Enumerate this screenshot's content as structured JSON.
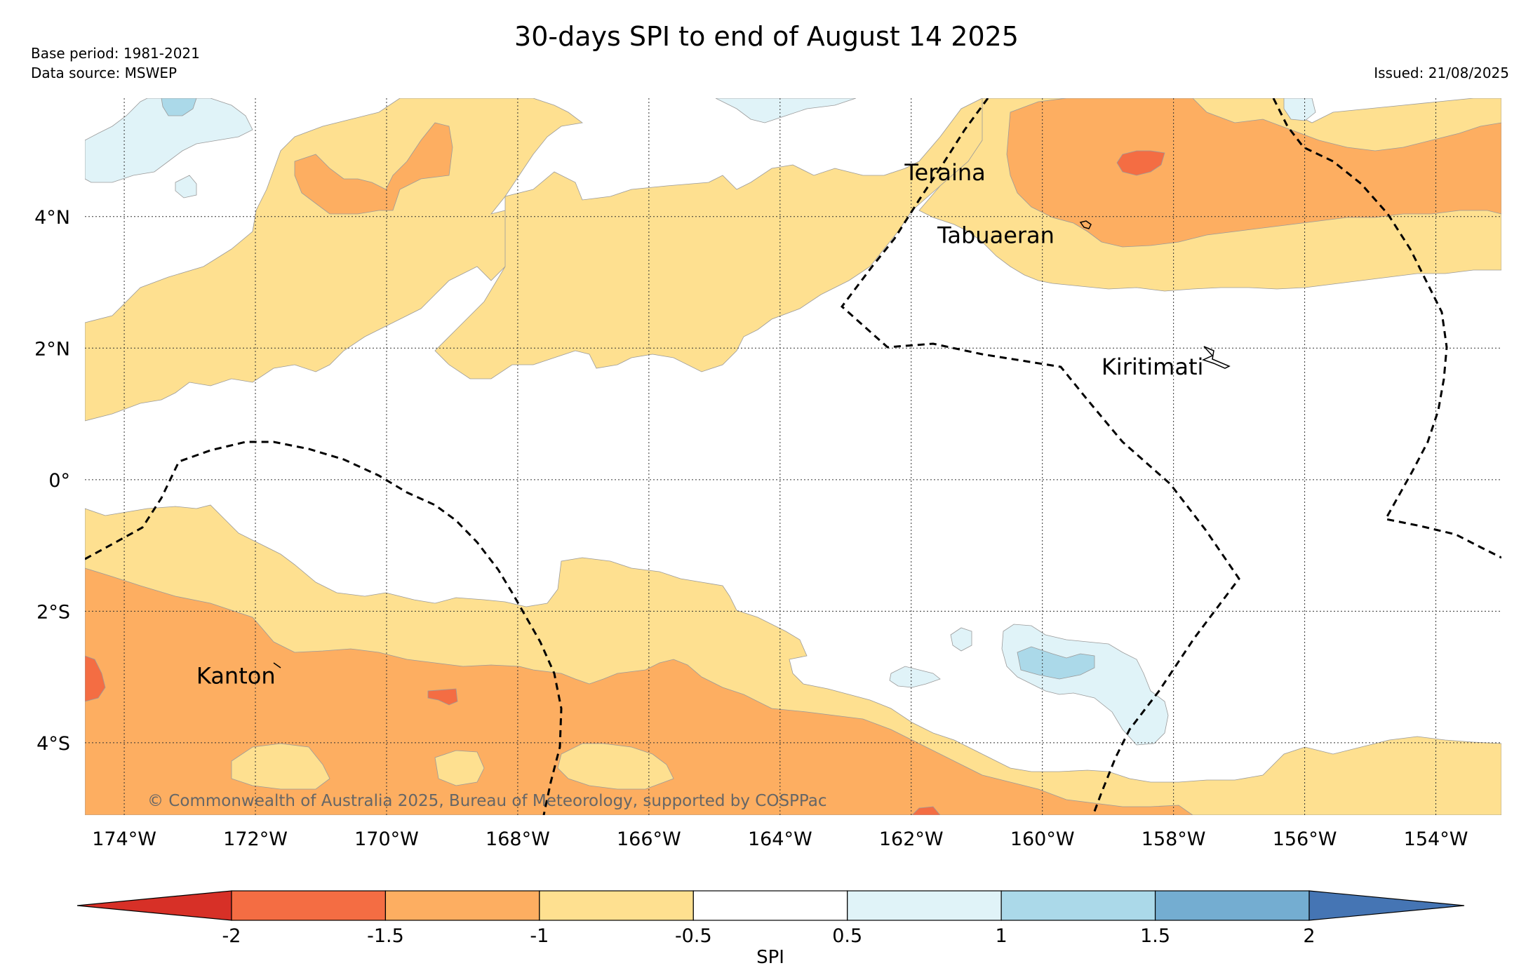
{
  "title": "30-days SPI to end of August 14 2025",
  "meta": {
    "base_period": "Base period: 1981-2021",
    "data_source": "Data source: MSWEP",
    "issued": "Issued: 21/08/2025"
  },
  "copyright": "© Commonwealth of Australia 2025, Bureau of Meteorology, supported by COSPPac",
  "map": {
    "lon_range": [
      -174.6,
      -153.0
    ],
    "lat_range": [
      -5.1,
      5.8
    ],
    "lon_ticks": [
      {
        "value": -174,
        "label": "174°W"
      },
      {
        "value": -172,
        "label": "172°W"
      },
      {
        "value": -170,
        "label": "170°W"
      },
      {
        "value": -168,
        "label": "168°W"
      },
      {
        "value": -166,
        "label": "166°W"
      },
      {
        "value": -164,
        "label": "164°W"
      },
      {
        "value": -162,
        "label": "162°W"
      },
      {
        "value": -160,
        "label": "160°W"
      },
      {
        "value": -158,
        "label": "158°W"
      },
      {
        "value": -156,
        "label": "156°W"
      },
      {
        "value": -154,
        "label": "154°W"
      }
    ],
    "lat_ticks": [
      {
        "value": 4,
        "label": "4°N"
      },
      {
        "value": 2,
        "label": "2°N"
      },
      {
        "value": 0,
        "label": "0°"
      },
      {
        "value": -2,
        "label": "2°S"
      },
      {
        "value": -4,
        "label": "4°S"
      }
    ],
    "grid": true,
    "places": [
      {
        "name": "Teraina",
        "lon": -162.1,
        "lat": 4.55
      },
      {
        "name": "Tabuaeran",
        "lon": -161.6,
        "lat": 3.6
      },
      {
        "name": "Kiritimati",
        "lon": -159.1,
        "lat": 1.6
      },
      {
        "name": "Kanton",
        "lon": -172.9,
        "lat": -3.1
      }
    ]
  },
  "colorbar": {
    "label": "SPI",
    "ticks": [
      "-2",
      "-1.5",
      "-1",
      "-0.5",
      "0.5",
      "1",
      "1.5",
      "2"
    ],
    "colors": {
      "below_-2": "#d73027",
      "-2_to_-1.5": "#f46d43",
      "-1.5_to_-1": "#fdae61",
      "-1_to_-0.5": "#fee090",
      "-0.5_to_0.5": "#ffffff",
      "0.5_to_1": "#e0f3f8",
      "1_to_1.5": "#abd9e9",
      "1.5_to_2": "#74add1",
      "above_2": "#4575b4"
    }
  }
}
